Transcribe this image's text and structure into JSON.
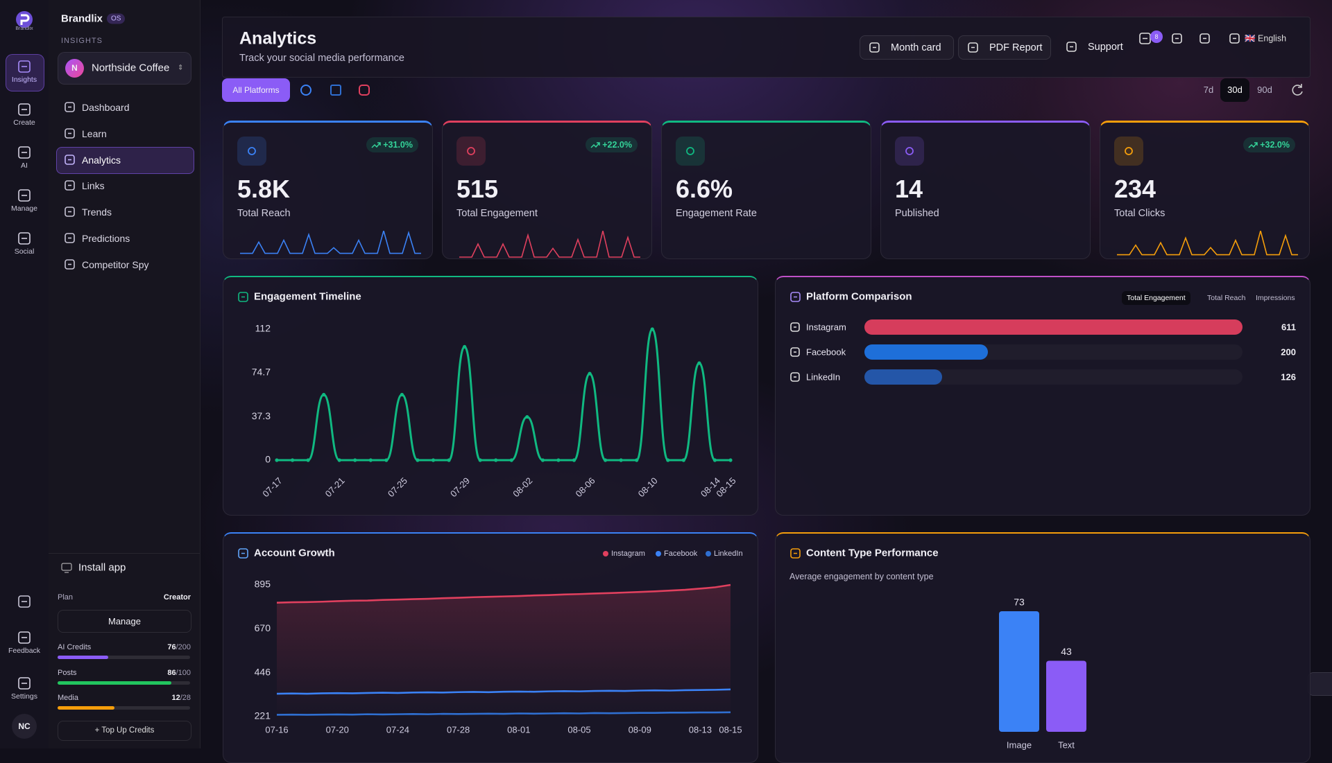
{
  "brand": {
    "logo_text": "Brandlix",
    "name": "Brandlix",
    "badge": "OS"
  },
  "rail": {
    "items": [
      "Insights",
      "Create",
      "AI",
      "Manage",
      "Social"
    ],
    "active": "Insights",
    "bottom": [
      "Feedback",
      "Settings"
    ],
    "avatar": "NC"
  },
  "sidebar": {
    "section": "INSIGHTS",
    "workspace": {
      "initial": "N",
      "name": "Northside Coffee"
    },
    "nav": [
      "Dashboard",
      "Learn",
      "Analytics",
      "Links",
      "Trends",
      "Predictions",
      "Competitor Spy"
    ],
    "active": "Analytics",
    "install": "Install app",
    "plan": {
      "label": "Plan",
      "value": "Creator",
      "button": "Manage"
    },
    "usage": [
      {
        "label": "AI Credits",
        "used": 76,
        "limit": 200,
        "limit_label": "/200",
        "color": "#8b5cf6"
      },
      {
        "label": "Posts",
        "used": 86,
        "limit": 100,
        "limit_label": "/100",
        "color": "#22c55e"
      },
      {
        "label": "Media",
        "used": 12,
        "limit": 28,
        "limit_label": "/28",
        "color": "#f59e0b"
      }
    ],
    "topup": "+ Top Up Credits"
  },
  "header": {
    "title": "Analytics",
    "subtitle": "Track your social media performance",
    "buttons": [
      "Month card",
      "PDF Report",
      "Support"
    ],
    "notifications": 8,
    "language": "🇬🇧 English"
  },
  "filters": {
    "platform": "All Platforms",
    "ranges": [
      "7d",
      "30d",
      "90d"
    ],
    "active_range": "30d"
  },
  "stats": [
    {
      "label": "Total Reach",
      "value": "5.8K",
      "delta": "+31.0%",
      "color": "#3b82f6",
      "sparkline": [
        2,
        2,
        2,
        8,
        2,
        2,
        2,
        9,
        2,
        2,
        2,
        12,
        2,
        2,
        2,
        5,
        2,
        2,
        2,
        9,
        2,
        2,
        2,
        14,
        2,
        2,
        2,
        13,
        2,
        2
      ]
    },
    {
      "label": "Total Engagement",
      "value": "515",
      "delta": "+22.0%",
      "color": "#e0405e",
      "sparkline": [
        0,
        0,
        0,
        6,
        0,
        0,
        0,
        6,
        0,
        0,
        0,
        10,
        0,
        0,
        0,
        4,
        0,
        0,
        0,
        8,
        0,
        0,
        0,
        12,
        0,
        0,
        0,
        9,
        0,
        0
      ]
    },
    {
      "label": "Engagement Rate",
      "value": "6.6%",
      "color": "#10b981"
    },
    {
      "label": "Published",
      "value": "14",
      "color": "#8b5cf6"
    },
    {
      "label": "Total Clicks",
      "value": "234",
      "delta": "+32.0%",
      "color": "#f59e0b",
      "sparkline": [
        1,
        1,
        1,
        5,
        1,
        1,
        1,
        6,
        1,
        1,
        1,
        8,
        1,
        1,
        1,
        4,
        1,
        1,
        1,
        7,
        1,
        1,
        1,
        11,
        1,
        1,
        1,
        9,
        1,
        1
      ]
    }
  ],
  "engagement_timeline": {
    "type": "line",
    "title": "Engagement Timeline",
    "color": "#10b981",
    "categories": [
      "07-17",
      null,
      null,
      null,
      "07-21",
      null,
      null,
      null,
      "07-25",
      null,
      null,
      null,
      "07-29",
      null,
      null,
      null,
      "08-02",
      null,
      null,
      null,
      "08-06",
      null,
      null,
      null,
      "08-10",
      null,
      null,
      null,
      "08-14",
      "08-15"
    ],
    "values": [
      0,
      0,
      0,
      56,
      0,
      0,
      0,
      0,
      56,
      0,
      0,
      0,
      97,
      0,
      0,
      0,
      37,
      0,
      0,
      0,
      74,
      0,
      0,
      0,
      112,
      0,
      0,
      83,
      0,
      0
    ],
    "ylim": [
      0,
      112
    ],
    "yticks": [
      0,
      37.3,
      74.7,
      112
    ]
  },
  "platform_comparison": {
    "type": "bar",
    "orientation": "horizontal",
    "title": "Platform Comparison",
    "tabs": [
      "Total Engagement",
      "Total Reach",
      "Impressions"
    ],
    "active_tab": "Total Engagement",
    "categories": [
      "Instagram",
      "Facebook",
      "LinkedIn"
    ],
    "values": [
      611,
      200,
      126
    ],
    "colors": [
      "#d63d5c",
      "#1e6fd9",
      "#2456a8"
    ],
    "xlim": [
      0,
      611
    ]
  },
  "account_growth": {
    "type": "line",
    "title": "Account Growth",
    "categories": [
      "07-16",
      null,
      null,
      null,
      "07-20",
      null,
      null,
      null,
      "07-24",
      null,
      null,
      null,
      "07-28",
      null,
      null,
      null,
      "08-01",
      null,
      null,
      null,
      "08-05",
      null,
      null,
      null,
      "08-09",
      null,
      null,
      null,
      "08-13",
      null,
      "08-15"
    ],
    "series": [
      {
        "name": "Instagram",
        "color": "#e0405e",
        "values": [
          804,
          806,
          807,
          809,
          812,
          814,
          815,
          818,
          820,
          822,
          824,
          827,
          829,
          832,
          834,
          836,
          838,
          841,
          843,
          846,
          848,
          851,
          853,
          856,
          859,
          862,
          866,
          870,
          876,
          883,
          895
        ]
      },
      {
        "name": "Facebook",
        "color": "#3b82f6",
        "values": [
          338,
          339,
          338,
          340,
          341,
          340,
          342,
          343,
          342,
          344,
          345,
          344,
          346,
          347,
          346,
          348,
          349,
          348,
          350,
          351,
          350,
          352,
          353,
          352,
          354,
          355,
          354,
          356,
          357,
          358,
          360
        ]
      },
      {
        "name": "LinkedIn",
        "color": "#2f6fd1",
        "values": [
          230,
          231,
          230,
          231,
          232,
          231,
          233,
          232,
          233,
          234,
          233,
          235,
          234,
          235,
          236,
          235,
          237,
          236,
          237,
          238,
          237,
          239,
          238,
          239,
          240,
          240,
          241,
          241,
          242,
          242,
          243
        ]
      }
    ],
    "ylim": [
      221,
      895
    ],
    "yticks": [
      221,
      446,
      670,
      895
    ]
  },
  "content_type": {
    "type": "bar",
    "title": "Content Type Performance",
    "subtitle": "Average engagement by content type",
    "categories": [
      "Image",
      "Text"
    ],
    "values": [
      73,
      43
    ],
    "colors": [
      "#3b82f6",
      "#8b5cf6"
    ],
    "ylim": [
      0,
      73
    ]
  }
}
